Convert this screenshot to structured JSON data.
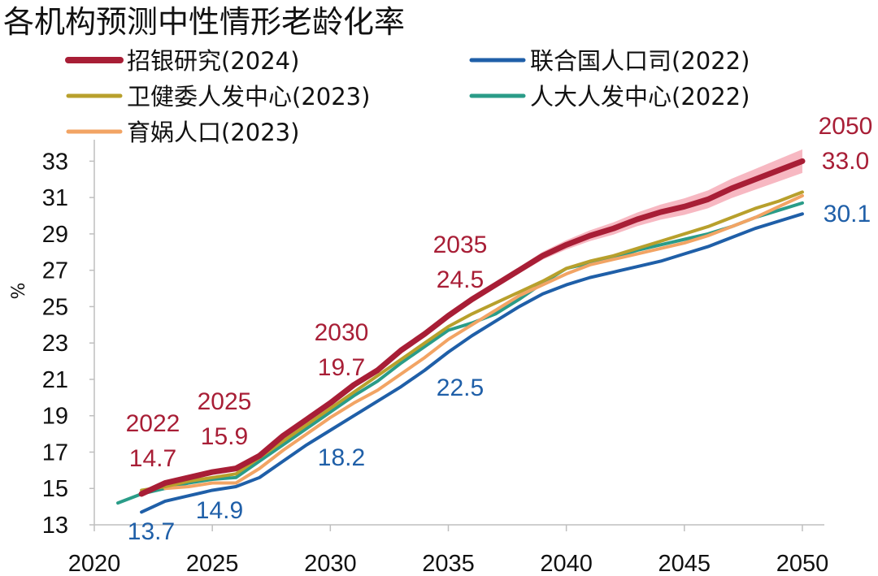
{
  "chart_data": {
    "type": "line",
    "title": "各机构预测中性情形老龄化率",
    "xlabel": "",
    "ylabel": "%",
    "xlim": [
      2020,
      2051
    ],
    "ylim": [
      13,
      34
    ],
    "xticks": [
      2020,
      2025,
      2030,
      2035,
      2040,
      2045,
      2050
    ],
    "yticks": [
      13,
      15,
      17,
      19,
      21,
      23,
      25,
      27,
      29,
      31,
      33
    ],
    "grid": false,
    "legend_position": "top",
    "series": [
      {
        "name": "招银研究(2024)",
        "color": "#A81E36",
        "width": "thick",
        "band_color": "#F4A0AE",
        "x": [
          2022,
          2023,
          2024,
          2025,
          2026,
          2027,
          2028,
          2029,
          2030,
          2031,
          2032,
          2033,
          2034,
          2035,
          2036,
          2037,
          2038,
          2039,
          2040,
          2041,
          2042,
          2043,
          2044,
          2045,
          2046,
          2047,
          2048,
          2049,
          2050
        ],
        "values": [
          14.7,
          15.3,
          15.6,
          15.9,
          16.1,
          16.8,
          17.9,
          18.8,
          19.7,
          20.7,
          21.5,
          22.6,
          23.5,
          24.5,
          25.4,
          26.2,
          27.0,
          27.8,
          28.4,
          28.9,
          29.3,
          29.8,
          30.2,
          30.5,
          30.9,
          31.5,
          32.0,
          32.5,
          33.0
        ]
      },
      {
        "name": "联合国人口司(2022)",
        "color": "#1F5FA8",
        "width": "normal",
        "x": [
          2022,
          2023,
          2024,
          2025,
          2026,
          2027,
          2028,
          2029,
          2030,
          2031,
          2032,
          2033,
          2034,
          2035,
          2036,
          2037,
          2038,
          2039,
          2040,
          2041,
          2042,
          2043,
          2044,
          2045,
          2046,
          2047,
          2048,
          2049,
          2050
        ],
        "values": [
          13.7,
          14.3,
          14.6,
          14.9,
          15.1,
          15.6,
          16.5,
          17.4,
          18.2,
          19.0,
          19.8,
          20.6,
          21.5,
          22.5,
          23.4,
          24.2,
          25.0,
          25.7,
          26.2,
          26.6,
          26.9,
          27.2,
          27.5,
          27.9,
          28.3,
          28.8,
          29.3,
          29.7,
          30.1
        ]
      },
      {
        "name": "卫健委人发中心(2023)",
        "color": "#B8A02C",
        "width": "normal",
        "x": [
          2022,
          2023,
          2024,
          2025,
          2026,
          2027,
          2028,
          2029,
          2030,
          2031,
          2032,
          2033,
          2034,
          2035,
          2036,
          2037,
          2038,
          2039,
          2040,
          2041,
          2042,
          2043,
          2044,
          2045,
          2046,
          2047,
          2048,
          2049,
          2050
        ],
        "values": [
          14.9,
          15.1,
          15.4,
          15.6,
          15.8,
          16.7,
          17.6,
          18.5,
          19.4,
          20.3,
          21.2,
          22.1,
          23.0,
          23.9,
          24.6,
          25.2,
          25.8,
          26.4,
          27.1,
          27.5,
          27.8,
          28.2,
          28.6,
          29.0,
          29.4,
          29.9,
          30.4,
          30.8,
          31.3
        ]
      },
      {
        "name": "人大人发中心(2022)",
        "color": "#2A9C88",
        "width": "normal",
        "x": [
          2021,
          2022,
          2023,
          2024,
          2025,
          2026,
          2027,
          2028,
          2029,
          2030,
          2031,
          2032,
          2033,
          2034,
          2035,
          2036,
          2037,
          2038,
          2039,
          2040,
          2041,
          2042,
          2043,
          2044,
          2045,
          2046,
          2047,
          2048,
          2049,
          2050
        ],
        "values": [
          14.2,
          14.7,
          15.0,
          15.3,
          15.5,
          15.6,
          16.5,
          17.4,
          18.3,
          19.2,
          20.1,
          20.9,
          21.9,
          22.8,
          23.7,
          24.1,
          24.6,
          25.4,
          26.3,
          27.1,
          27.4,
          27.7,
          28.1,
          28.4,
          28.7,
          29.0,
          29.4,
          29.9,
          30.3,
          30.7
        ]
      },
      {
        "name": "育娲人口(2023)",
        "color": "#F2A464",
        "width": "normal",
        "x": [
          2023,
          2024,
          2025,
          2026,
          2027,
          2028,
          2029,
          2030,
          2031,
          2032,
          2033,
          2034,
          2035,
          2036,
          2037,
          2038,
          2039,
          2040,
          2041,
          2042,
          2043,
          2044,
          2045,
          2046,
          2047,
          2048,
          2049,
          2050
        ],
        "values": [
          15.0,
          15.1,
          15.3,
          15.3,
          16.1,
          17.1,
          18.0,
          18.9,
          19.7,
          20.4,
          21.3,
          22.2,
          23.2,
          24.0,
          24.8,
          25.6,
          26.2,
          26.8,
          27.3,
          27.6,
          27.9,
          28.2,
          28.5,
          28.9,
          29.4,
          29.9,
          30.5,
          31.1
        ]
      }
    ],
    "annotations": [
      {
        "year_label": "2022",
        "value_label": "14.7",
        "series": "招银研究(2024)"
      },
      {
        "year_label": "2025",
        "value_label": "15.9",
        "series": "招银研究(2024)"
      },
      {
        "year_label": "2030",
        "value_label": "19.7",
        "series": "招银研究(2024)"
      },
      {
        "year_label": "2035",
        "value_label": "24.5",
        "series": "招银研究(2024)"
      },
      {
        "year_label": "2050",
        "value_label": "33.0",
        "series": "招银研究(2024)"
      },
      {
        "value_label": "13.7",
        "series": "联合国人口司(2022)"
      },
      {
        "value_label": "14.9",
        "series": "联合国人口司(2022)"
      },
      {
        "value_label": "18.2",
        "series": "联合国人口司(2022)"
      },
      {
        "value_label": "22.5",
        "series": "联合国人口司(2022)"
      },
      {
        "value_label": "30.1",
        "series": "联合国人口司(2022)"
      }
    ]
  }
}
